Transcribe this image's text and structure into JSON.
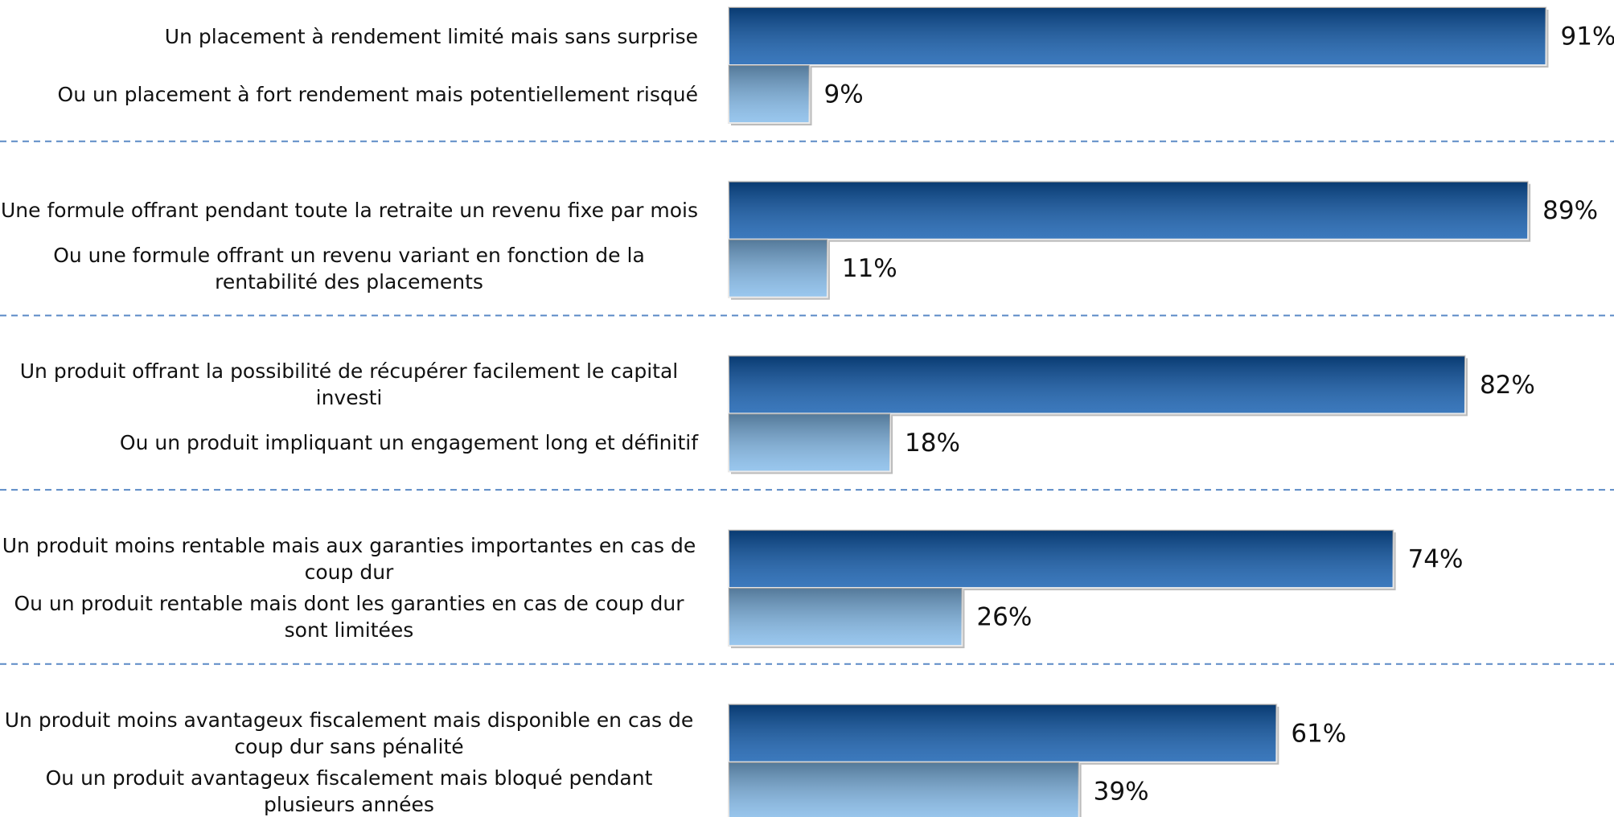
{
  "chart_data": {
    "type": "bar",
    "orientation": "horizontal",
    "categories": [
      "Un placement à rendement limité mais sans surprise",
      "Ou un placement à fort rendement mais potentiellement risqué",
      "Une formule offrant pendant toute la retraite un revenu fixe par mois",
      "Ou une formule offrant un revenu variant en fonction de la rentabilité des placements",
      "Un produit offrant la possibilité de récupérer facilement le capital investi",
      "Ou un produit impliquant un engagement long et définitif",
      "Un produit moins rentable mais aux garanties importantes en cas de coup dur",
      "Ou un produit rentable mais dont les garanties en cas de coup dur sont limitées",
      "Un produit moins avantageux fiscalement mais disponible en cas de coup dur sans pénalité",
      "Ou un produit avantageux fiscalement mais bloqué pendant plusieurs années"
    ],
    "values": [
      91,
      9,
      89,
      11,
      82,
      18,
      74,
      26,
      61,
      39
    ],
    "value_labels": [
      "91%",
      "9%",
      "89%",
      "11%",
      "82%",
      "18%",
      "74%",
      "26%",
      "61%",
      "39%"
    ],
    "colors": [
      "#0b58ad",
      "#80b9ea"
    ],
    "xlim": [
      0,
      100
    ]
  }
}
